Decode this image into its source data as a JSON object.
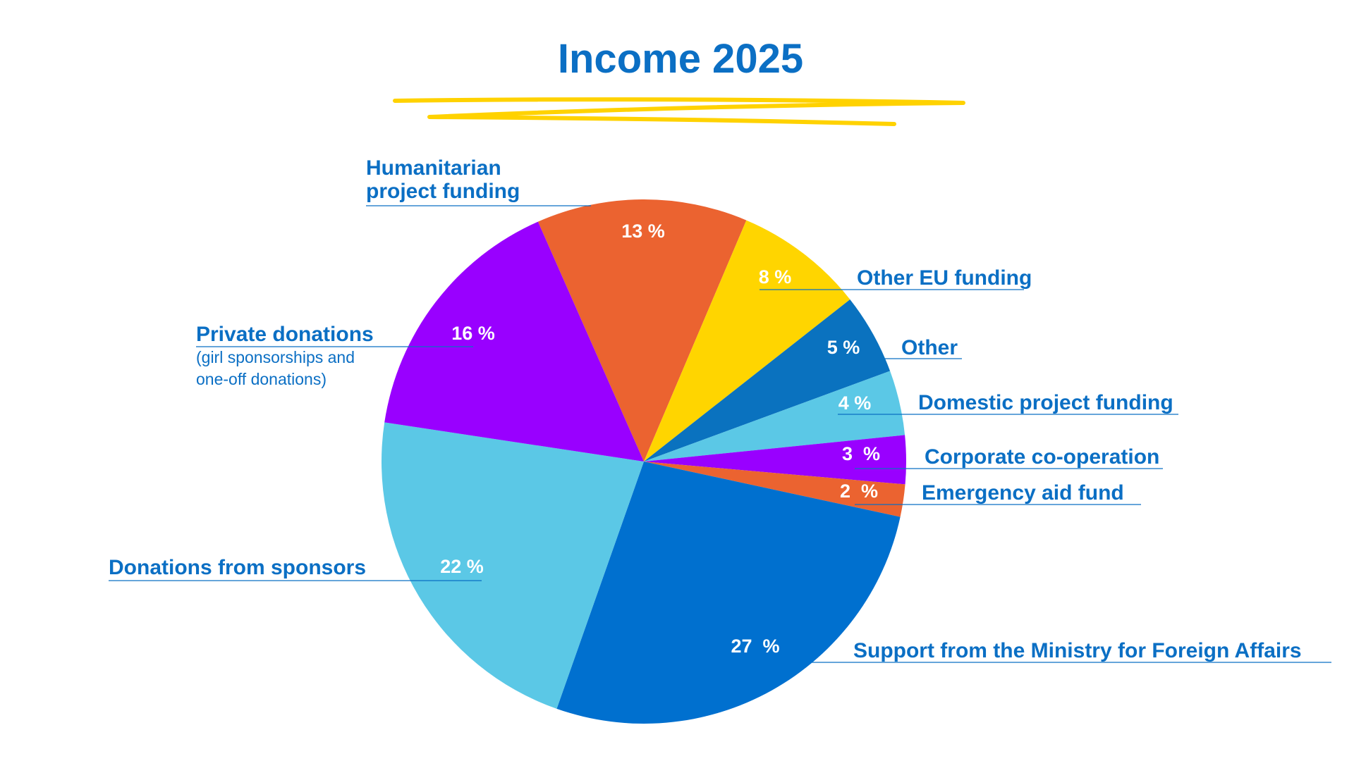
{
  "chart_data": {
    "type": "pie",
    "title": "Income 2025",
    "categories": [
      "Humanitarian project funding",
      "Other EU funding",
      "Other",
      "Domestic project funding",
      "Corporate co-operation",
      "Emergency aid fund",
      "Support from the Ministry for Foreign Affairs",
      "Donations from sponsors",
      "Private donations"
    ],
    "values": [
      13,
      8,
      5,
      4,
      3,
      2,
      27,
      22,
      16
    ],
    "value_labels": [
      "13 %",
      "8 %",
      "5 %",
      "4 %",
      "3  %",
      "2  %",
      "27  %",
      "22 %",
      "16 %"
    ],
    "colors": [
      "#EB6330",
      "#FFD500",
      "#0A72BF",
      "#5BC8E6",
      "#9900FF",
      "#EB6330",
      "#0070CF",
      "#5BC8E6",
      "#9900FF"
    ],
    "annotation": "(girl sponsorships and one-off donations)"
  }
}
